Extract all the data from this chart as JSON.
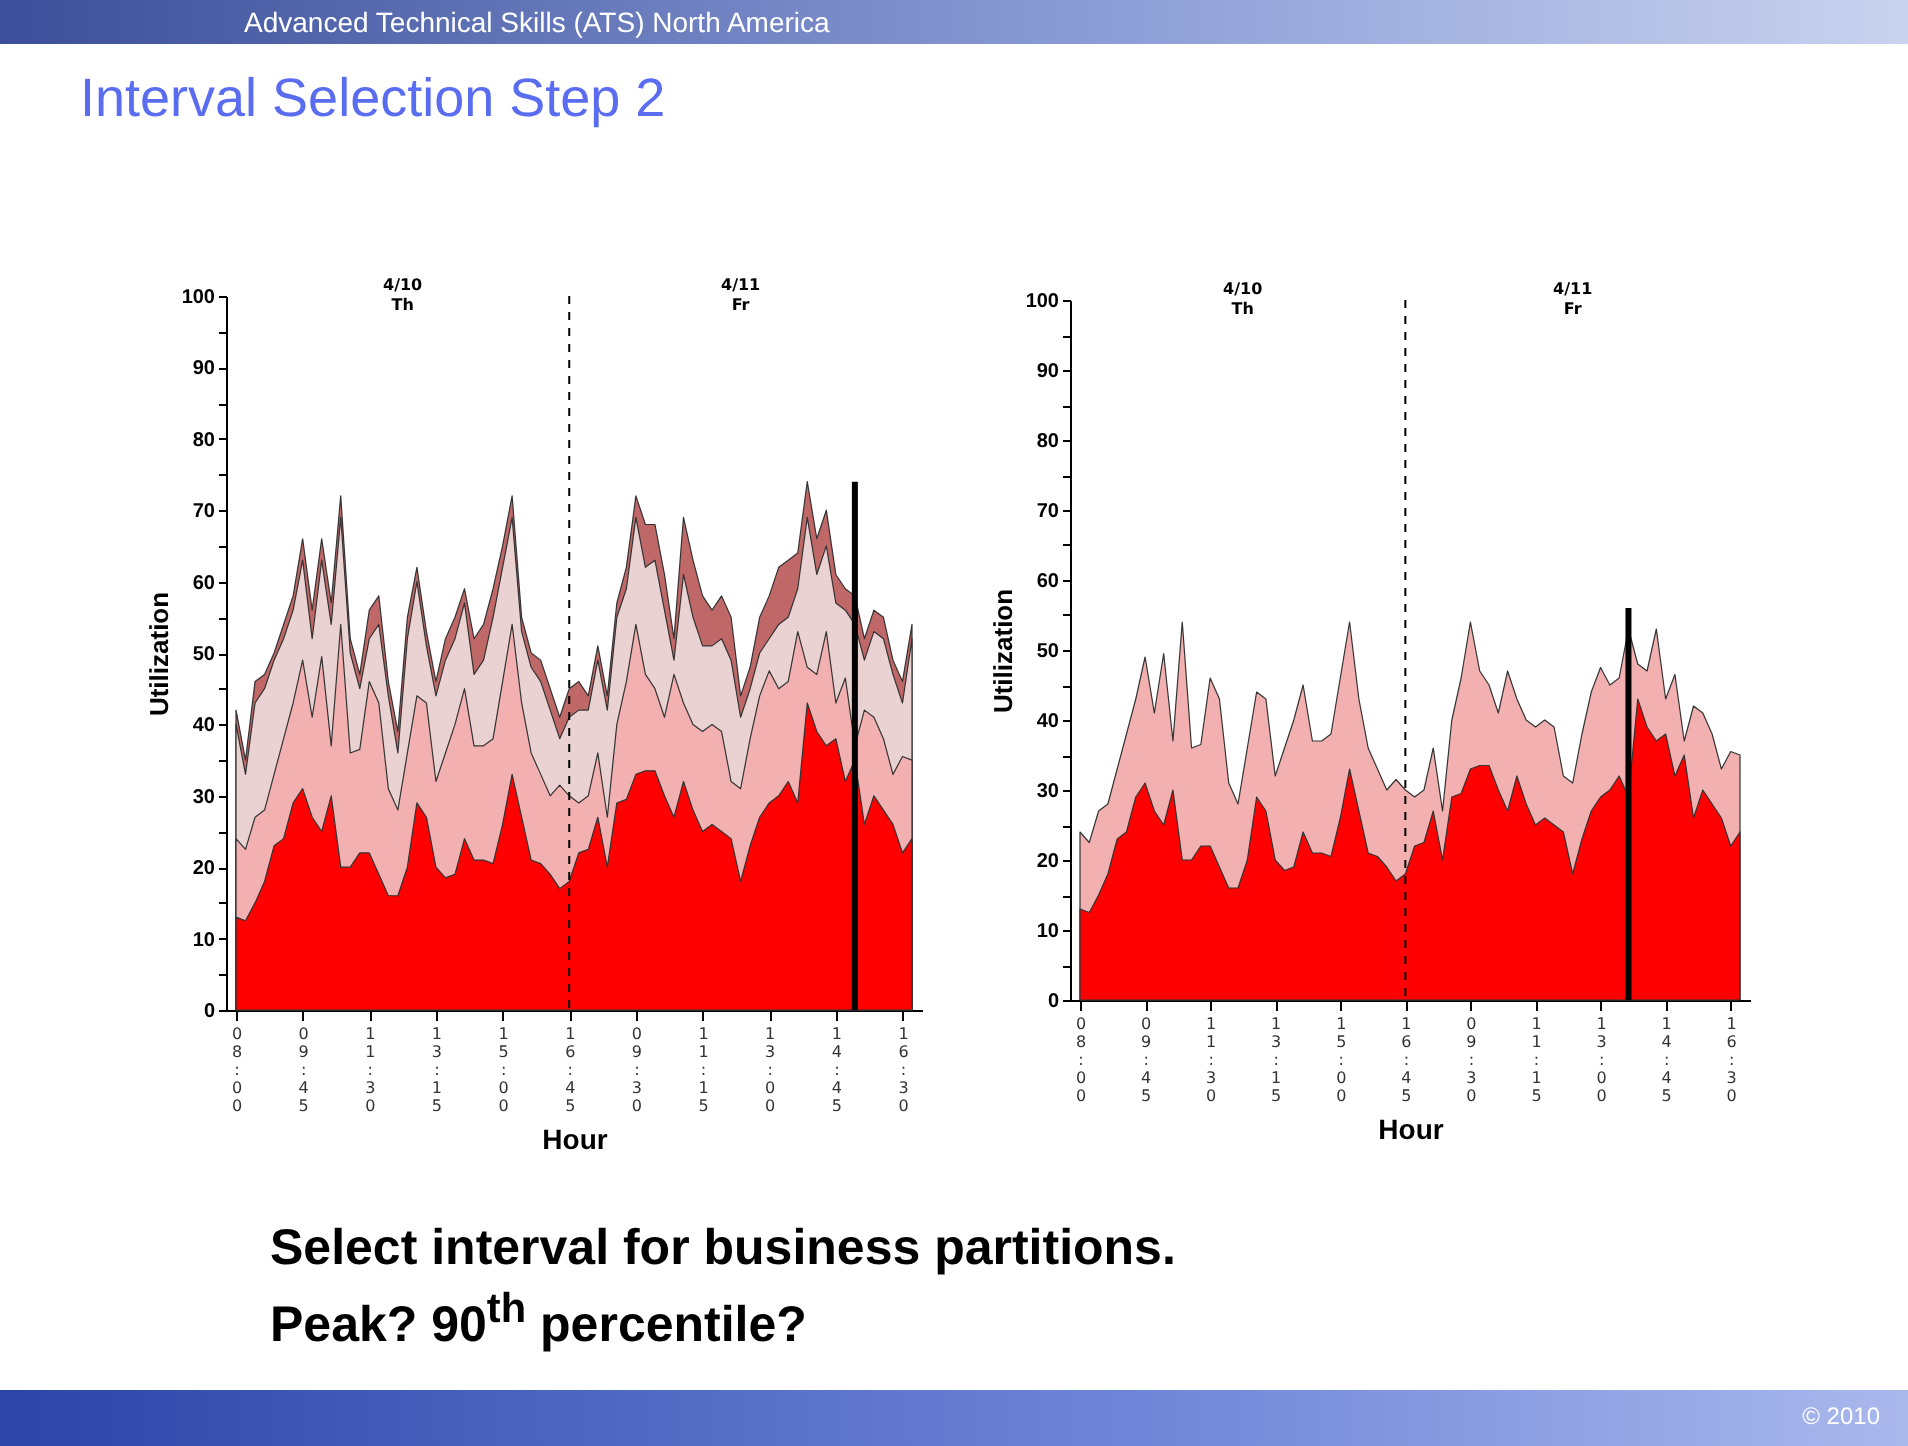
{
  "chart_data": [
    {
      "type": "area",
      "title": "Interval Selection Step 2",
      "xlabel": "Hour",
      "ylabel": "Utilization",
      "annotations": [
        "4/10 Th",
        "4/11 Fr",
        "Advanced Technical Skills (ATS) North America",
        "Select interval for business partitions. Peak? 90$^{th}$ percentile?",
        "© 2010"
      ],
      "categories": [
        "08:00",
        null,
        null,
        null,
        null,
        null,
        null,
        "09:45",
        null,
        null,
        null,
        null,
        null,
        null,
        "11:30",
        null,
        null,
        null,
        null,
        null,
        null,
        "13:15",
        null,
        null,
        null,
        null,
        null,
        null,
        "15:00",
        null,
        null,
        null,
        null,
        null,
        null,
        "16:45",
        null,
        null,
        null,
        null,
        null,
        null,
        "09:30",
        null,
        null,
        null,
        null,
        null,
        null,
        "11:15",
        null,
        null,
        null,
        null,
        null,
        null,
        "13:00",
        null,
        null,
        null,
        null,
        null,
        null,
        "14:45",
        null,
        null,
        null,
        null,
        null,
        null,
        "16:30",
        null
      ],
      "series": [
        {
          "color": "#ff0000",
          "values": [
            13,
            12.5,
            15,
            18,
            23,
            24,
            29,
            31,
            27,
            25,
            30,
            20,
            20,
            22,
            22,
            19,
            16,
            16,
            20,
            29,
            27,
            20,
            18.5,
            19,
            24,
            21,
            21,
            20.5,
            26,
            33,
            27,
            21,
            20.5,
            19,
            17,
            18,
            22,
            22.5,
            27,
            20,
            29,
            29.5,
            33,
            33.5,
            33.5,
            30,
            27,
            32,
            28,
            25,
            26,
            25,
            24,
            18,
            23,
            27,
            29,
            30,
            32,
            29,
            43,
            39,
            37,
            38,
            32,
            35,
            26,
            30,
            28,
            26,
            22,
            24
          ]
        },
        {
          "color": "#f2b0b0",
          "values": [
            24,
            22.5,
            27,
            28,
            33,
            38,
            43,
            49,
            41,
            49.5,
            37,
            54,
            36,
            36.5,
            46,
            43,
            31,
            28,
            36,
            44,
            43,
            32,
            36,
            40,
            45,
            37,
            37,
            38,
            46,
            54,
            43,
            36,
            33,
            30,
            31.5,
            30,
            29,
            30,
            36,
            27,
            40,
            46,
            54,
            47,
            45,
            41,
            47,
            43,
            40,
            39,
            40,
            39,
            32,
            31,
            38,
            44,
            47.5,
            45,
            46,
            53,
            48,
            47,
            53,
            43,
            46.5,
            37,
            42,
            41,
            38,
            33,
            35.5,
            35
          ]
        },
        {
          "color": "#ead2d2",
          "values": [
            40,
            33,
            43,
            45,
            49,
            52,
            56,
            63,
            52,
            63,
            54,
            69,
            50,
            45,
            52,
            54,
            44,
            36,
            52,
            60,
            51,
            44,
            49,
            52,
            57,
            47,
            49,
            55,
            62,
            69,
            53,
            48,
            46,
            42,
            38,
            41,
            42,
            42,
            49,
            42,
            55,
            59,
            69,
            62,
            63,
            56,
            49,
            61,
            55,
            51,
            51,
            52,
            49,
            41,
            45,
            50,
            52,
            54,
            55,
            59,
            69,
            61,
            65,
            57,
            56,
            54,
            49,
            53,
            52,
            47,
            43,
            52
          ]
        },
        {
          "color": "#c06868",
          "values": [
            42,
            35,
            46,
            47,
            50,
            54,
            58,
            66,
            56,
            66,
            57,
            72,
            52,
            47,
            56,
            58,
            46,
            39,
            55,
            62,
            53,
            46,
            52,
            55,
            59,
            52,
            54,
            59,
            65,
            72,
            55,
            50,
            49,
            45,
            41,
            45,
            46,
            44,
            51,
            44,
            57,
            62,
            72,
            68,
            68,
            61,
            52,
            69,
            63,
            58,
            56,
            58,
            55,
            44,
            48,
            55,
            58,
            62,
            63,
            64,
            74,
            66,
            70,
            61,
            59,
            58,
            52,
            56,
            55,
            49,
            46,
            54
          ]
        },
        {
          "type": "bar",
          "color": "#000000",
          "values": [
            null,
            null,
            null,
            null,
            null,
            null,
            null,
            null,
            null,
            null,
            null,
            null,
            null,
            null,
            null,
            null,
            null,
            null,
            null,
            null,
            null,
            null,
            null,
            null,
            null,
            null,
            null,
            null,
            null,
            null,
            null,
            null,
            null,
            null,
            null,
            null,
            null,
            null,
            null,
            null,
            null,
            null,
            null,
            null,
            null,
            null,
            null,
            null,
            null,
            null,
            null,
            null,
            null,
            null,
            null,
            null,
            null,
            null,
            null,
            null,
            null,
            null,
            null,
            null,
            null,
            74,
            null,
            null,
            null,
            null,
            null,
            null
          ]
        }
      ],
      "ylim": [
        0,
        100
      ],
      "yticks": [
        0,
        {
          "value": 5,
          "label": null
        },
        10,
        {
          "value": 15,
          "label": null
        },
        20,
        {
          "value": 25,
          "label": null
        },
        30,
        {
          "value": 35,
          "label": null
        },
        40,
        {
          "value": 45,
          "label": null
        },
        50,
        {
          "value": 55,
          "label": null
        },
        60,
        {
          "value": 65,
          "label": null
        },
        70,
        {
          "value": 75,
          "label": null
        },
        80,
        {
          "value": 85,
          "label": null
        },
        90,
        {
          "value": 95,
          "label": null
        },
        100
      ],
      "ref_lines": [
        {
          "axis": "x",
          "value": "16:45",
          "color": "#000000",
          "line_style": "dashed"
        }
      ]
    },
    {
      "type": "area",
      "xlabel": "Hour",
      "ylabel": "Utilization",
      "annotations": [
        "4/10 Th",
        "4/11 Fr"
      ],
      "categories": [
        "08:00",
        null,
        null,
        null,
        null,
        null,
        null,
        "09:45",
        null,
        null,
        null,
        null,
        null,
        null,
        "11:30",
        null,
        null,
        null,
        null,
        null,
        null,
        "13:15",
        null,
        null,
        null,
        null,
        null,
        null,
        "15:00",
        null,
        null,
        null,
        null,
        null,
        null,
        "16:45",
        null,
        null,
        null,
        null,
        null,
        null,
        "09:30",
        null,
        null,
        null,
        null,
        null,
        null,
        "11:15",
        null,
        null,
        null,
        null,
        null,
        null,
        "13:00",
        null,
        null,
        null,
        null,
        null,
        null,
        "14:45",
        null,
        null,
        null,
        null,
        null,
        null,
        "16:30",
        null
      ],
      "series": [
        {
          "color": "#ff0000",
          "values": [
            13,
            12.5,
            15,
            18,
            23,
            24,
            29,
            31,
            27,
            25,
            30,
            20,
            20,
            22,
            22,
            19,
            16,
            16,
            20,
            29,
            27,
            20,
            18.5,
            19,
            24,
            21,
            21,
            20.5,
            26,
            33,
            27,
            21,
            20.5,
            19,
            17,
            18,
            22,
            22.5,
            27,
            20,
            29,
            29.5,
            33,
            33.5,
            33.5,
            30,
            27,
            32,
            28,
            25,
            26,
            25,
            24,
            18,
            23,
            27,
            29,
            30,
            32,
            29,
            43,
            39,
            37,
            38,
            32,
            35,
            26,
            30,
            28,
            26,
            22,
            24
          ]
        },
        {
          "color": "#f2b0b0",
          "values": [
            24,
            22.5,
            27,
            28,
            33,
            38,
            43,
            49,
            41,
            49.5,
            37,
            54,
            36,
            36.5,
            46,
            43,
            31,
            28,
            36,
            44,
            43,
            32,
            36,
            40,
            45,
            37,
            37,
            38,
            46,
            54,
            43,
            36,
            33,
            30,
            31.5,
            30,
            29,
            30,
            36,
            27,
            40,
            46,
            54,
            47,
            45,
            41,
            47,
            43,
            40,
            39,
            40,
            39,
            32,
            31,
            38,
            44,
            47.5,
            45,
            46,
            53,
            48,
            47,
            53,
            43,
            46.5,
            37,
            42,
            41,
            38,
            33,
            35.5,
            35
          ]
        },
        {
          "type": "bar",
          "color": "#000000",
          "values": [
            null,
            null,
            null,
            null,
            null,
            null,
            null,
            null,
            null,
            null,
            null,
            null,
            null,
            null,
            null,
            null,
            null,
            null,
            null,
            null,
            null,
            null,
            null,
            null,
            null,
            null,
            null,
            null,
            null,
            null,
            null,
            null,
            null,
            null,
            null,
            null,
            null,
            null,
            null,
            null,
            null,
            null,
            null,
            null,
            null,
            null,
            null,
            null,
            null,
            null,
            null,
            null,
            null,
            null,
            null,
            null,
            null,
            null,
            null,
            56,
            null,
            null,
            null,
            null,
            null,
            null,
            null,
            null,
            null,
            null,
            null,
            null
          ]
        }
      ],
      "ylim": [
        0,
        100
      ],
      "yticks": [
        0,
        {
          "value": 5,
          "label": null
        },
        10,
        {
          "value": 15,
          "label": null
        },
        20,
        {
          "value": 25,
          "label": null
        },
        30,
        {
          "value": 35,
          "label": null
        },
        40,
        {
          "value": 45,
          "label": null
        },
        50,
        {
          "value": 55,
          "label": null
        },
        60,
        {
          "value": 65,
          "label": null
        },
        70,
        {
          "value": 75,
          "label": null
        },
        80,
        {
          "value": 85,
          "label": null
        },
        90,
        {
          "value": 95,
          "label": null
        },
        100
      ],
      "ref_lines": [
        {
          "axis": "x",
          "value": "16:45",
          "color": "#000000",
          "line_style": "dashed"
        }
      ]
    }
  ]
}
